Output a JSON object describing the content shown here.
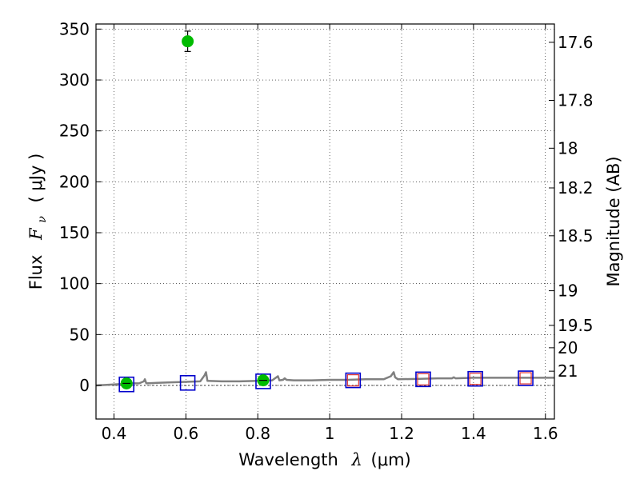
{
  "chart_data": {
    "type": "scatter",
    "xlabel": "Wavelength",
    "xlabel_math": "λ",
    "xlabel_unit": "(μm)",
    "ylabel": "Flux",
    "ylabel_math_main": "F",
    "ylabel_math_sub": "ν",
    "ylabel_unit": "( μJy )",
    "y2label": "Magnitude (AB)",
    "xlim": [
      0.35,
      1.625
    ],
    "ylim": [
      -33,
      355
    ],
    "grid": true,
    "x_ticks": [
      0.4,
      0.6,
      0.8,
      1.0,
      1.2,
      1.4,
      1.6
    ],
    "x_tick_labels": [
      "0.4",
      "0.6",
      "0.8",
      "1",
      "1.2",
      "1.4",
      "1.6"
    ],
    "y_ticks": [
      0,
      50,
      100,
      150,
      200,
      250,
      300,
      350
    ],
    "y_tick_labels": [
      "0",
      "50",
      "100",
      "150",
      "200",
      "250",
      "300",
      "350"
    ],
    "y2_ticks": [
      {
        "label": "17.6",
        "flux": 337
      },
      {
        "label": "17.8",
        "flux": 280
      },
      {
        "label": "18",
        "flux": 233
      },
      {
        "label": "18.2",
        "flux": 194
      },
      {
        "label": "18.5",
        "flux": 147
      },
      {
        "label": "19",
        "flux": 93
      },
      {
        "label": "19.5",
        "flux": 59
      },
      {
        "label": "20",
        "flux": 37
      },
      {
        "label": "21",
        "flux": 14
      }
    ],
    "series": [
      {
        "kind": "line",
        "color": "#808080",
        "x": [
          0.35,
          0.4,
          0.45,
          0.47,
          0.483,
          0.486,
          0.49,
          0.52,
          0.55,
          0.6,
          0.64,
          0.652,
          0.656,
          0.66,
          0.7,
          0.75,
          0.8,
          0.84,
          0.852,
          0.856,
          0.86,
          0.87,
          0.875,
          0.88,
          0.9,
          0.95,
          1.0,
          1.05,
          1.1,
          1.15,
          1.17,
          1.178,
          1.182,
          1.19,
          1.25,
          1.3,
          1.34,
          1.345,
          1.35,
          1.4,
          1.45,
          1.5,
          1.55,
          1.6,
          1.625
        ],
        "y": [
          0,
          1,
          2,
          2,
          4,
          6,
          2,
          2.5,
          3,
          3.5,
          4,
          10,
          13,
          4.5,
          4,
          4,
          4.5,
          5,
          8,
          9,
          5,
          5.5,
          7,
          5.5,
          5,
          5,
          5.5,
          5.5,
          6,
          6,
          9,
          13,
          8,
          6,
          6.5,
          7,
          7,
          8,
          7,
          7.5,
          7.5,
          7.5,
          7.5,
          7.5,
          7.5
        ]
      },
      {
        "kind": "points",
        "marker": "circle",
        "color": "#00bb00",
        "x": [
          0.435,
          0.605,
          0.815
        ],
        "y": [
          2,
          338,
          5
        ],
        "yerr": [
          0,
          10,
          0
        ]
      },
      {
        "kind": "points",
        "marker": "open-square",
        "color": "#0000cc",
        "x": [
          0.435,
          0.605,
          0.815,
          1.065,
          1.26,
          1.405,
          1.545
        ],
        "y": [
          1,
          2.5,
          4,
          5,
          6,
          6.5,
          7
        ]
      },
      {
        "kind": "points",
        "marker": "open-square-small",
        "color": "#dd3333",
        "x": [
          1.065,
          1.26,
          1.405,
          1.545
        ],
        "y": [
          5,
          6,
          6.5,
          7
        ]
      }
    ],
    "hline": {
      "y": 0,
      "style": "dotted",
      "color": "#000000"
    }
  }
}
